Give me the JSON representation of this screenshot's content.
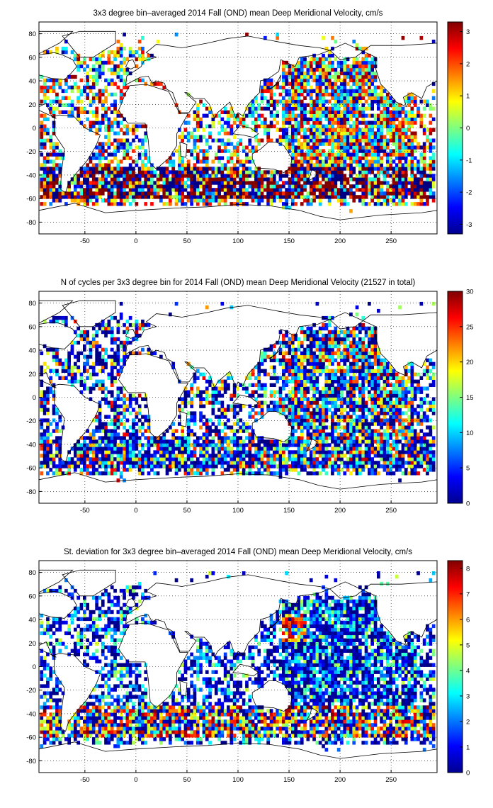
{
  "chart_data": [
    {
      "type": "heatmap",
      "title": "3x3 degree bin–averaged 2014 Fall (OND) mean Deep Meridional Velocity, cm/s",
      "xticks": [
        -50,
        0,
        50,
        100,
        150,
        200,
        250
      ],
      "yticks": [
        80,
        60,
        40,
        20,
        0,
        -20,
        -40,
        -60,
        -80
      ],
      "xlim": [
        -95,
        295
      ],
      "ylim": [
        -90,
        90
      ],
      "grid": true,
      "colorbar": {
        "range": [
          -3.3,
          3.3
        ],
        "ticks": [
          3,
          2,
          1,
          0,
          -1,
          -2,
          -3
        ]
      }
    },
    {
      "type": "heatmap",
      "title": "N of cycles per 3x3 degree bin for 2014 Fall (OND) mean Deep Meridional Velocity (21527 in total)",
      "xticks": [
        -50,
        0,
        50,
        100,
        150,
        200,
        250
      ],
      "yticks": [
        80,
        60,
        40,
        20,
        0,
        -20,
        -40,
        -60,
        -80
      ],
      "xlim": [
        -95,
        295
      ],
      "ylim": [
        -90,
        90
      ],
      "grid": true,
      "colorbar": {
        "range": [
          0,
          30
        ],
        "ticks": [
          30,
          25,
          20,
          15,
          10,
          5,
          0
        ]
      }
    },
    {
      "type": "heatmap",
      "title": "St. deviation for 3x3 degree bin–averaged 2014 Fall (OND) mean Deep Meridional Velocity, cm/s",
      "xticks": [
        -50,
        0,
        50,
        100,
        150,
        200,
        250
      ],
      "yticks": [
        80,
        60,
        40,
        20,
        0,
        -20,
        -40,
        -60,
        -80
      ],
      "xlim": [
        -95,
        295
      ],
      "ylim": [
        -90,
        90
      ],
      "grid": true,
      "colorbar": {
        "range": [
          0,
          8.3
        ],
        "ticks": [
          8,
          7,
          6,
          5,
          4,
          3,
          2,
          1,
          0
        ]
      }
    }
  ]
}
